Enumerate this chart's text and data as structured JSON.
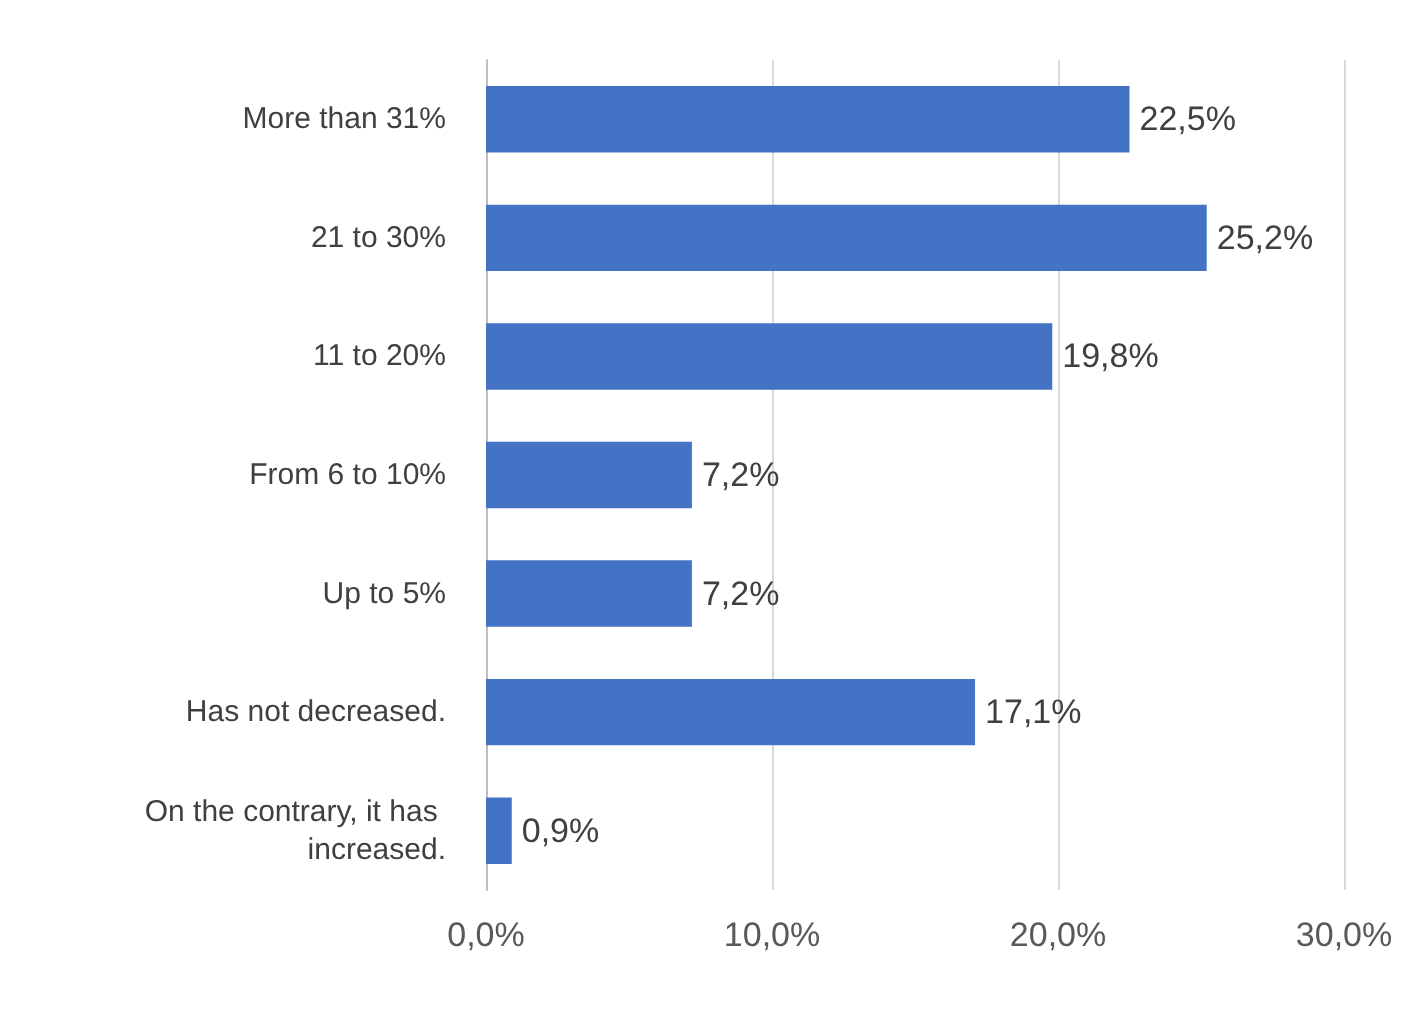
{
  "chart_data": {
    "type": "bar",
    "orientation": "horizontal",
    "categories": [
      "More than 31%",
      "21 to 30%",
      "11 to 20%",
      "From 6 to 10%",
      "Up to 5%",
      "Has not decreased.",
      "On the contrary, it has increased."
    ],
    "values": [
      22.5,
      25.2,
      19.8,
      7.2,
      7.2,
      17.1,
      0.9
    ],
    "value_labels": [
      "22,5%",
      "25,2%",
      "19,8%",
      "7,2%",
      "7,2%",
      "17,1%",
      "0,9%"
    ],
    "color": "#4472c4",
    "xlim": [
      0,
      30
    ],
    "xticks": [
      {
        "value": 0,
        "label": "0,0%"
      },
      {
        "value": 10,
        "label": "10,0%"
      },
      {
        "value": 20,
        "label": "20,0%"
      },
      {
        "value": 30,
        "label": "30,0%"
      }
    ],
    "grid": "x"
  }
}
